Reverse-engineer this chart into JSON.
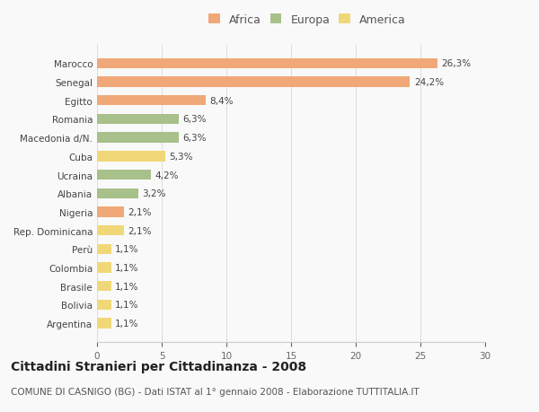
{
  "countries": [
    "Marocco",
    "Senegal",
    "Egitto",
    "Romania",
    "Macedonia d/N.",
    "Cuba",
    "Ucraina",
    "Albania",
    "Nigeria",
    "Rep. Dominicana",
    "Perù",
    "Colombia",
    "Brasile",
    "Bolivia",
    "Argentina"
  ],
  "values": [
    26.3,
    24.2,
    8.4,
    6.3,
    6.3,
    5.3,
    4.2,
    3.2,
    2.1,
    2.1,
    1.1,
    1.1,
    1.1,
    1.1,
    1.1
  ],
  "labels": [
    "26,3%",
    "24,2%",
    "8,4%",
    "6,3%",
    "6,3%",
    "5,3%",
    "4,2%",
    "3,2%",
    "2,1%",
    "2,1%",
    "1,1%",
    "1,1%",
    "1,1%",
    "1,1%",
    "1,1%"
  ],
  "colors": [
    "#F0A878",
    "#F0A878",
    "#F0A878",
    "#A8C08A",
    "#A8C08A",
    "#F0D878",
    "#A8C08A",
    "#A8C08A",
    "#F0A878",
    "#F0D878",
    "#F0D878",
    "#F0D878",
    "#F0D878",
    "#F0D878",
    "#F0D878"
  ],
  "legend_labels": [
    "Africa",
    "Europa",
    "America"
  ],
  "legend_colors": [
    "#F0A878",
    "#A8C08A",
    "#F0D878"
  ],
  "title": "Cittadini Stranieri per Cittadinanza - 2008",
  "subtitle": "COMUNE DI CASNIGO (BG) - Dati ISTAT al 1° gennaio 2008 - Elaborazione TUTTITALIA.IT",
  "xlim": [
    0,
    30
  ],
  "xticks": [
    0,
    5,
    10,
    15,
    20,
    25,
    30
  ],
  "bg_color": "#f9f9f9",
  "bar_height": 0.55,
  "title_fontsize": 10,
  "subtitle_fontsize": 7.5,
  "label_fontsize": 7.5,
  "tick_fontsize": 7.5,
  "legend_fontsize": 9
}
